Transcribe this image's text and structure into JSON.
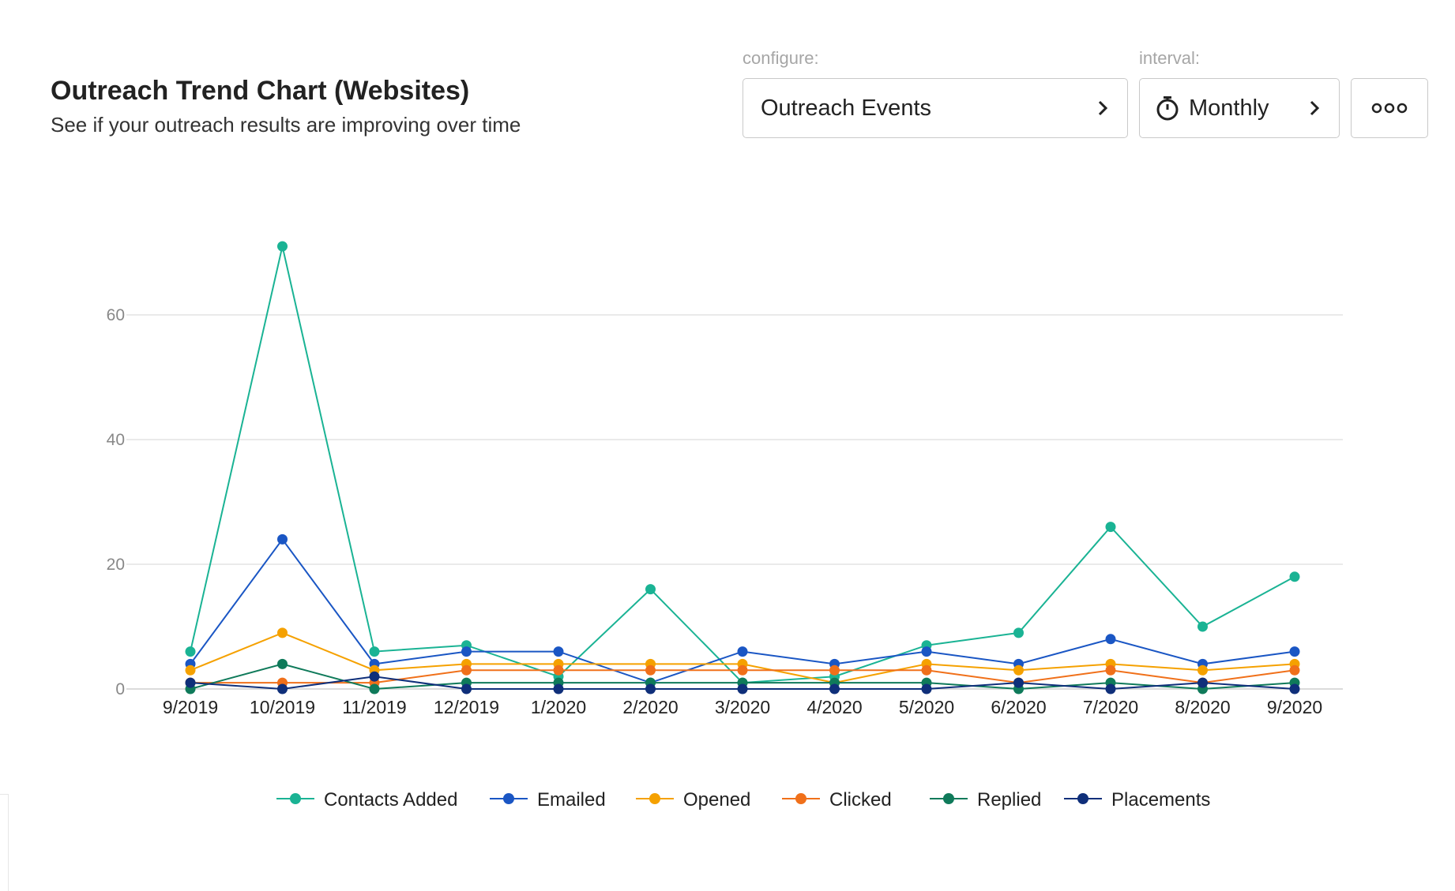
{
  "header": {
    "title": "Outreach Trend Chart (Websites)",
    "subtitle": "See if your outreach results are improving over time"
  },
  "controls": {
    "configure_label": "configure:",
    "configure_value": "Outreach Events",
    "interval_label": "interval:",
    "interval_value": "Monthly",
    "interval_icon": "stopwatch-icon",
    "more_icon": "more-options-icon",
    "chevron_icon": "chevron-right-icon"
  },
  "chart_data": {
    "type": "line",
    "title": "",
    "xlabel": "",
    "ylabel": "",
    "categories": [
      "9/2019",
      "10/2019",
      "11/2019",
      "12/2019",
      "1/2020",
      "2/2020",
      "3/2020",
      "4/2020",
      "5/2020",
      "6/2020",
      "7/2020",
      "8/2020",
      "9/2020"
    ],
    "ylim": [
      0,
      70
    ],
    "yticks": [
      0,
      20,
      40,
      60
    ],
    "grid": true,
    "legend_position": "bottom",
    "series": [
      {
        "name": "Contacts Added",
        "color": "#1ab394",
        "values": [
          6,
          71,
          6,
          7,
          2,
          16,
          1,
          2,
          7,
          9,
          26,
          10,
          18
        ]
      },
      {
        "name": "Emailed",
        "color": "#1a56c4",
        "values": [
          4,
          24,
          4,
          6,
          6,
          1,
          6,
          4,
          6,
          4,
          8,
          4,
          6
        ]
      },
      {
        "name": "Opened",
        "color": "#f5a100",
        "values": [
          3,
          9,
          3,
          4,
          4,
          4,
          4,
          1,
          4,
          3,
          4,
          3,
          4
        ]
      },
      {
        "name": "Clicked",
        "color": "#f0701a",
        "values": [
          1,
          1,
          1,
          3,
          3,
          3,
          3,
          3,
          3,
          1,
          3,
          1,
          3
        ]
      },
      {
        "name": "Replied",
        "color": "#0f7a5a",
        "values": [
          0,
          4,
          0,
          1,
          1,
          1,
          1,
          1,
          1,
          0,
          1,
          0,
          1
        ]
      },
      {
        "name": "Placements",
        "color": "#0f2f7a",
        "values": [
          1,
          0,
          2,
          0,
          0,
          0,
          0,
          0,
          0,
          1,
          0,
          1,
          0
        ]
      }
    ]
  }
}
